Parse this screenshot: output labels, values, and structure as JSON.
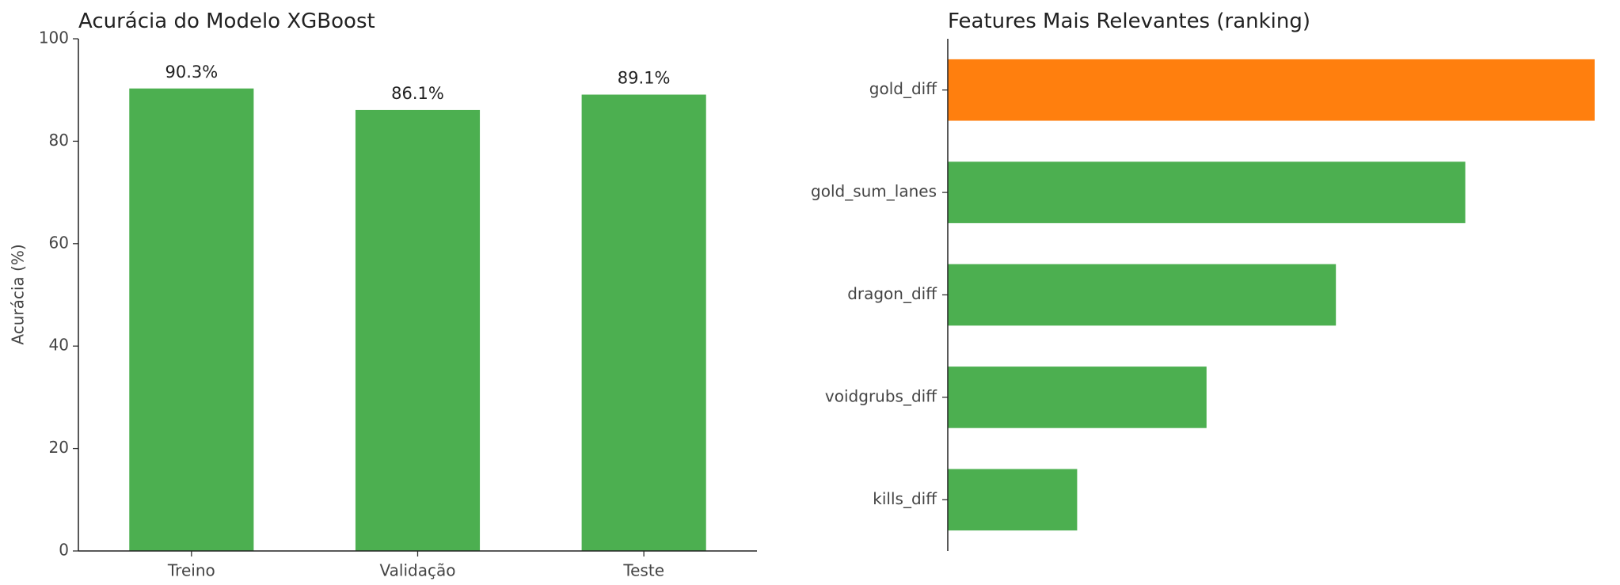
{
  "chart_data": [
    {
      "type": "bar",
      "title": "Acurácia do Modelo XGBoost",
      "y_label": "Acurácia (%)",
      "categories": [
        "Treino",
        "Validação",
        "Teste"
      ],
      "values": [
        90.3,
        86.1,
        89.1
      ],
      "value_labels": [
        "90.3%",
        "86.1%",
        "89.1%"
      ],
      "color": "#4caf50",
      "ylim": [
        0,
        100
      ],
      "yticks": [
        0,
        20,
        40,
        60,
        80,
        100
      ],
      "grid": false
    },
    {
      "type": "barh",
      "title": "Features Mais Relevantes (ranking)",
      "categories": [
        "gold_diff",
        "gold_sum_lanes",
        "dragon_diff",
        "voidgrubs_diff",
        "kills_diff"
      ],
      "values": [
        5,
        4,
        3,
        2,
        1
      ],
      "colors": [
        "#ff7f0e",
        "#4caf50",
        "#4caf50",
        "#4caf50",
        "#4caf50"
      ]
    }
  ]
}
